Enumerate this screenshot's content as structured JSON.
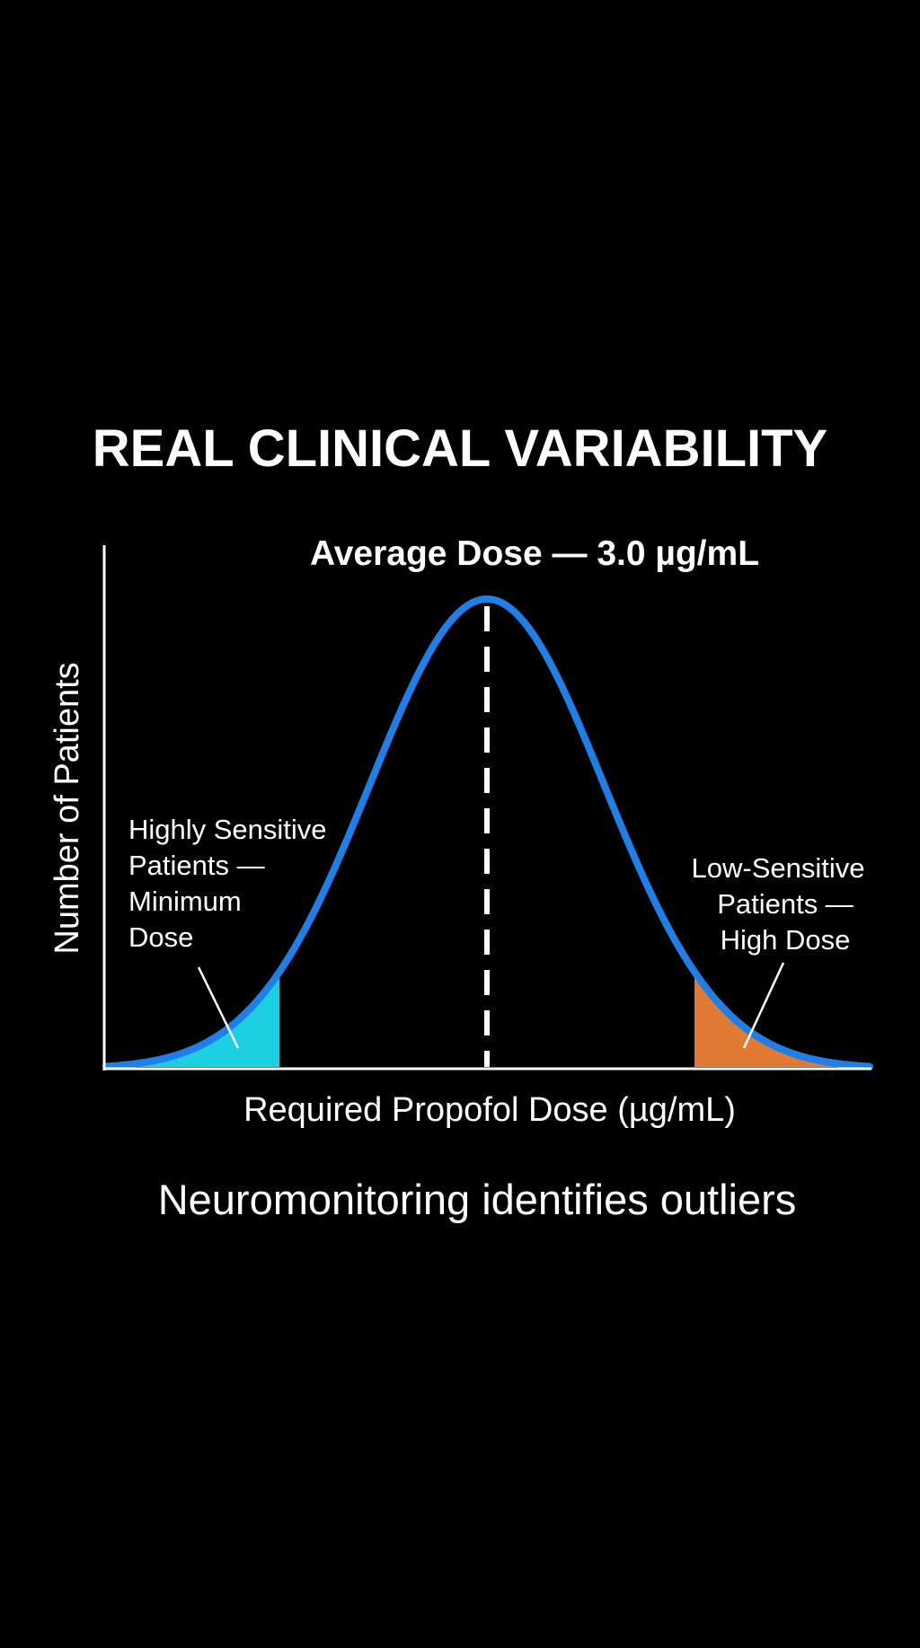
{
  "title": "REAL CLINICAL VARIABILITY",
  "caption": "Neuromonitoring identifies outliers",
  "colors": {
    "background": "#000000",
    "curve": "#1f7fe6",
    "axis": "#ffffff",
    "mean_line": "#ffffff",
    "low_tail": "#1ccfe0",
    "high_tail": "#e07a35"
  },
  "chart_data": {
    "type": "area",
    "distribution": "normal",
    "mean": 3.0,
    "mean_unit": "µg/mL",
    "xlabel": "Required Propofol Dose (µg/mL)",
    "ylabel": "Number of Patients",
    "mean_label": "Average Dose — 3.0 µg/mL",
    "ticks_shown": false,
    "grid": false,
    "regions": [
      {
        "name": "low",
        "color": "#1ccfe0",
        "label_lines": [
          "Highly Sensitive",
          "Patients —",
          "Minimum",
          "Dose"
        ]
      },
      {
        "name": "high",
        "color": "#e07a35",
        "label_lines": [
          "Low-Sensitive",
          "Patients —",
          "High Dose"
        ]
      }
    ]
  }
}
